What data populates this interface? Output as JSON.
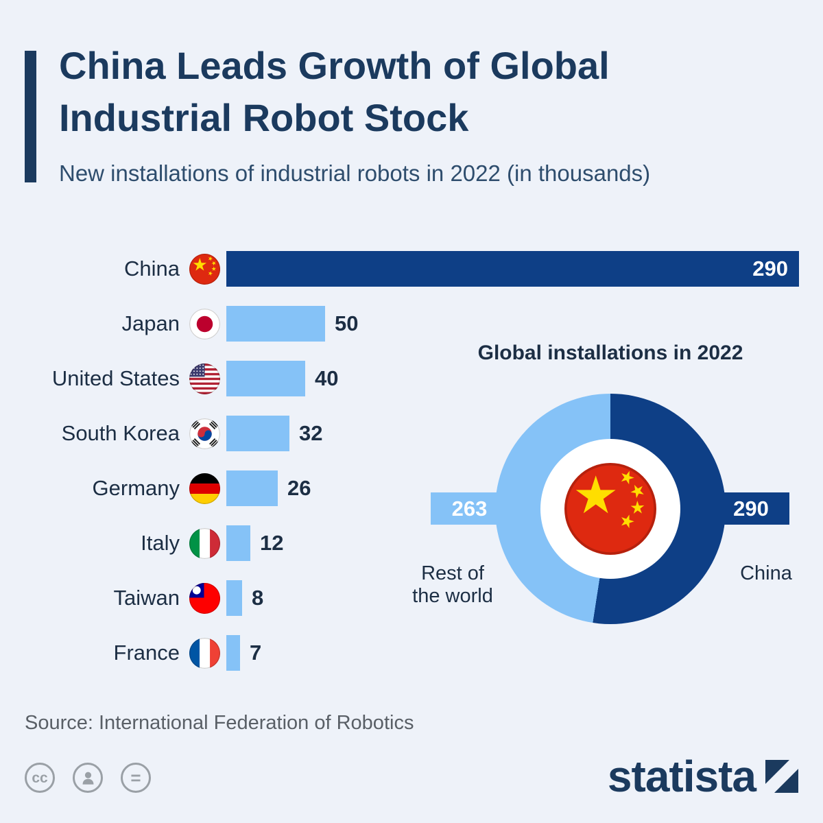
{
  "colors": {
    "background": "#eef2f9",
    "title_navy": "#1b3a5e",
    "accent_navy": "#0e3f86",
    "light_blue": "#85c2f7",
    "subtitle_navy": "#2e4d6d",
    "text_dark": "#1c2e44",
    "source_gray": "#595f66",
    "icon_gray": "#9aa0a6"
  },
  "header": {
    "title_line1": "China Leads Growth of Global",
    "title_line2": "Industrial Robot Stock",
    "subtitle": "New installations of industrial robots in 2022 (in thousands)"
  },
  "chart_data": [
    {
      "type": "bar",
      "orientation": "horizontal",
      "unit": "thousands",
      "categories": [
        "China",
        "Japan",
        "United States",
        "South Korea",
        "Germany",
        "Italy",
        "Taiwan",
        "France"
      ],
      "values": [
        290,
        50,
        40,
        32,
        26,
        12,
        8,
        7
      ],
      "flags": [
        "cn",
        "jp",
        "us",
        "kr",
        "de",
        "it",
        "tw",
        "fr"
      ],
      "xlim": [
        0,
        290
      ],
      "highlight_index": 0,
      "grid": false,
      "value_labels": true
    },
    {
      "type": "pie",
      "variant": "donut",
      "title": "Global installations in 2022",
      "slices": [
        {
          "label": "China",
          "value": 290,
          "color": "#0e3f86"
        },
        {
          "label": "Rest of the world",
          "value": 263,
          "color": "#85c2f7"
        }
      ],
      "legend_rest_lines": [
        "Rest of",
        "the world"
      ],
      "center_icon": "china-flag-icon",
      "legend_position": "sides"
    }
  ],
  "source": "Source: International Federation of Robotics",
  "footer": {
    "brand": "statista",
    "license_icons": [
      {
        "name": "cc-icon",
        "glyph": "cc"
      },
      {
        "name": "attribution-person-icon",
        "glyph": "person"
      },
      {
        "name": "equal-icon",
        "glyph": "="
      }
    ]
  }
}
